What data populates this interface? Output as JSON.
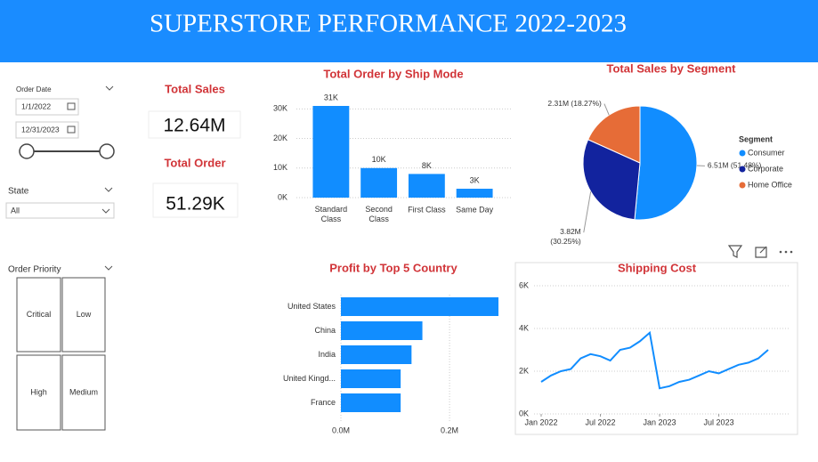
{
  "header": {
    "title": "SUPERSTORE PERFORMANCE 2022-2023"
  },
  "filters": {
    "order_date": {
      "label": "Order Date",
      "start": "1/1/2022",
      "end": "12/31/2023"
    },
    "state": {
      "label": "State",
      "selected": "All"
    },
    "order_priority": {
      "label": "Order Priority",
      "options": [
        "Critical",
        "Low",
        "High",
        "Medium"
      ]
    }
  },
  "cards": [
    {
      "title": "Total Sales",
      "value": "12.64M"
    },
    {
      "title": "Total Order",
      "value": "51.29K"
    }
  ],
  "chart_data": [
    {
      "type": "bar",
      "title": "Total Order by Ship Mode",
      "categories": [
        "Standard Class",
        "Second Class",
        "First Class",
        "Same Day"
      ],
      "values": [
        31000,
        10000,
        8000,
        3000
      ],
      "value_labels": [
        "31K",
        "10K",
        "8K",
        "3K"
      ],
      "color": "#118dff",
      "ylim": [
        0,
        31000
      ],
      "yticks": [
        {
          "value": 0,
          "label": "0K"
        },
        {
          "value": 10000,
          "label": "10K"
        },
        {
          "value": 20000,
          "label": "20K"
        },
        {
          "value": 30000,
          "label": "30K"
        }
      ],
      "grid": true
    },
    {
      "type": "pie",
      "title": "Total Sales by Segment",
      "categories": [
        "Consumer",
        "Corporate",
        "Home Office"
      ],
      "values": [
        6510000,
        3820000,
        2310000
      ],
      "value_labels": [
        "6.51M (51.48%)",
        "3.82M (30.25%)",
        "2.31M (18.27%)"
      ],
      "colors": [
        "#118dff",
        "#12239e",
        "#e66c37"
      ],
      "legend_title": "Segment",
      "legend": "right"
    },
    {
      "type": "bar",
      "horizontal": true,
      "title": "Profit by Top 5 Country",
      "categories": [
        "United States",
        "China",
        "India",
        "United Kingd...",
        "France"
      ],
      "values": [
        0.29,
        0.15,
        0.13,
        0.11,
        0.11
      ],
      "color": "#118dff",
      "xlim": [
        0,
        0.29
      ],
      "xticks": [
        {
          "value": 0,
          "label": "0.0M"
        },
        {
          "value": 0.2,
          "label": "0.2M"
        }
      ],
      "grid": true
    },
    {
      "type": "line",
      "title": "Shipping Cost",
      "x": [
        "2022-01",
        "2022-02",
        "2022-03",
        "2022-04",
        "2022-05",
        "2022-06",
        "2022-07",
        "2022-08",
        "2022-09",
        "2022-10",
        "2022-11",
        "2022-12",
        "2023-01",
        "2023-02",
        "2023-03",
        "2023-04",
        "2023-05",
        "2023-06",
        "2023-07",
        "2023-08",
        "2023-09",
        "2023-10",
        "2023-11",
        "2023-12"
      ],
      "values": [
        1500,
        1800,
        2000,
        2100,
        2600,
        2800,
        2700,
        2500,
        3000,
        3100,
        3400,
        3800,
        1200,
        1300,
        1500,
        1600,
        1800,
        2000,
        1900,
        2100,
        2300,
        2400,
        2600,
        3000
      ],
      "color": "#118dff",
      "ylim": [
        0,
        6000
      ],
      "yticks": [
        {
          "value": 0,
          "label": "0K"
        },
        {
          "value": 2000,
          "label": "2K"
        },
        {
          "value": 4000,
          "label": "4K"
        },
        {
          "value": 6000,
          "label": "6K"
        }
      ],
      "xticks": [
        {
          "value": "2022-01",
          "label": "Jan 2022"
        },
        {
          "value": "2022-07",
          "label": "Jul 2022"
        },
        {
          "value": "2023-01",
          "label": "Jan 2023"
        },
        {
          "value": "2023-07",
          "label": "Jul 2023"
        }
      ],
      "grid": true
    }
  ]
}
